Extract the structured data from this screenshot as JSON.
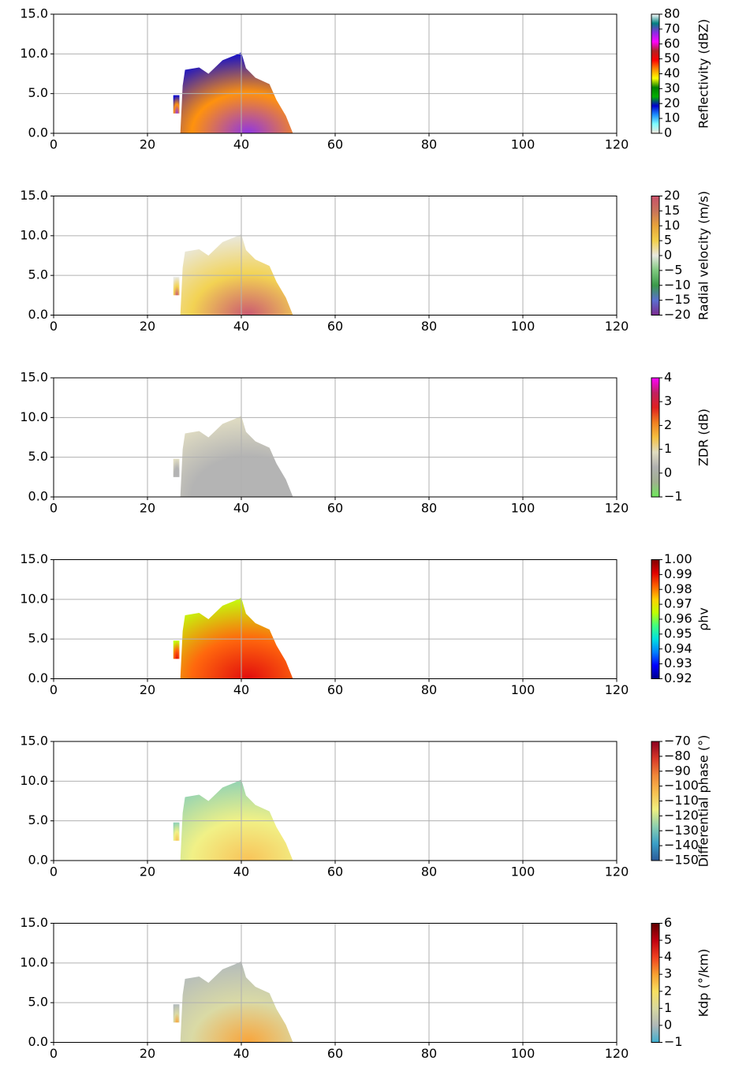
{
  "chart_data": [
    {
      "type": "heatmap",
      "xlim": [
        0,
        120
      ],
      "ylim": [
        0,
        15
      ],
      "xticks": [
        0,
        20,
        40,
        60,
        80,
        100,
        120
      ],
      "yticks": [
        {
          "value": 0,
          "label": "0.0"
        },
        {
          "value": 5,
          "label": "5.0"
        },
        {
          "value": 10,
          "label": "10.0"
        },
        {
          "value": 15,
          "label": "15.0"
        }
      ],
      "grid": true,
      "colorbar": {
        "label": "Reflectivity (dBZ)",
        "lim": [
          0,
          80
        ],
        "ticks": [
          0,
          10,
          20,
          30,
          40,
          50,
          60,
          70,
          80
        ],
        "colors": [
          "#f5e6dc",
          "#7fffff",
          "#1e90ff",
          "#0000cd",
          "#00b000",
          "#008000",
          "#ffff00",
          "#ff8c00",
          "#ff0000",
          "#b22222",
          "#ff00ff",
          "#8a2be2",
          "#008080",
          "#ffffff"
        ]
      }
    },
    {
      "type": "heatmap",
      "xlim": [
        0,
        120
      ],
      "ylim": [
        0,
        15
      ],
      "xticks": [
        0,
        20,
        40,
        60,
        80,
        100,
        120
      ],
      "yticks": [
        {
          "value": 0,
          "label": "0.0"
        },
        {
          "value": 5,
          "label": "5.0"
        },
        {
          "value": 10,
          "label": "10.0"
        },
        {
          "value": 15,
          "label": "15.0"
        }
      ],
      "grid": true,
      "colorbar": {
        "label": "Radial velocity (m/s)",
        "lim": [
          -20,
          20
        ],
        "ticks": [
          {
            "value": -20,
            "label": "−20"
          },
          {
            "value": -15,
            "label": "−15"
          },
          {
            "value": -10,
            "label": "−10"
          },
          {
            "value": -5,
            "label": "−5"
          },
          0,
          5,
          10,
          15,
          20
        ],
        "colors": [
          "#7b2a8f",
          "#5a6fd0",
          "#3a9a4a",
          "#7fc97f",
          "#e8e8e0",
          "#f2d04a",
          "#e7a33a",
          "#c9735a",
          "#c8506a"
        ]
      }
    },
    {
      "type": "heatmap",
      "xlim": [
        0,
        120
      ],
      "ylim": [
        0,
        15
      ],
      "xticks": [
        0,
        20,
        40,
        60,
        80,
        100,
        120
      ],
      "yticks": [
        {
          "value": 0,
          "label": "0.0"
        },
        {
          "value": 5,
          "label": "5.0"
        },
        {
          "value": 10,
          "label": "10.0"
        },
        {
          "value": 15,
          "label": "15.0"
        }
      ],
      "grid": true,
      "colorbar": {
        "label": "ZDR (dB)",
        "lim": [
          -1,
          4
        ],
        "ticks": [
          {
            "value": -1,
            "label": "−1"
          },
          0,
          1,
          2,
          3,
          4
        ],
        "colors": [
          "#6ee85a",
          "#a0b090",
          "#b0b0b0",
          "#e0dcc0",
          "#f5c040",
          "#f08020",
          "#e02020",
          "#c02060",
          "#ff00ff"
        ]
      }
    },
    {
      "type": "heatmap",
      "xlim": [
        0,
        120
      ],
      "ylim": [
        0,
        15
      ],
      "xticks": [
        0,
        20,
        40,
        60,
        80,
        100,
        120
      ],
      "yticks": [
        {
          "value": 0,
          "label": "0.0"
        },
        {
          "value": 5,
          "label": "5.0"
        },
        {
          "value": 10,
          "label": "10.0"
        },
        {
          "value": 15,
          "label": "15.0"
        }
      ],
      "grid": true,
      "colorbar": {
        "label": "ρhv",
        "lim": [
          0.92,
          1.0
        ],
        "ticks": [
          0.92,
          0.93,
          0.94,
          0.95,
          0.96,
          0.97,
          0.98,
          0.99,
          {
            "value": 1.0,
            "label": "1.00"
          }
        ],
        "colors": [
          "#00008b",
          "#0000ff",
          "#0080ff",
          "#00e0e0",
          "#40ff80",
          "#c0ff00",
          "#ffd000",
          "#ff6000",
          "#e00000",
          "#800000"
        ]
      }
    },
    {
      "type": "heatmap",
      "xlim": [
        0,
        120
      ],
      "ylim": [
        0,
        15
      ],
      "xticks": [
        0,
        20,
        40,
        60,
        80,
        100,
        120
      ],
      "yticks": [
        {
          "value": 0,
          "label": "0.0"
        },
        {
          "value": 5,
          "label": "5.0"
        },
        {
          "value": 10,
          "label": "10.0"
        },
        {
          "value": 15,
          "label": "15.0"
        }
      ],
      "grid": true,
      "colorbar": {
        "label": "Differential phase (°)",
        "lim": [
          -150,
          -70
        ],
        "ticks": [
          {
            "value": -150,
            "label": "−150"
          },
          {
            "value": -140,
            "label": "−140"
          },
          {
            "value": -130,
            "label": "−130"
          },
          {
            "value": -120,
            "label": "−120"
          },
          {
            "value": -110,
            "label": "−110"
          },
          {
            "value": -100,
            "label": "−100"
          },
          {
            "value": -90,
            "label": "−90"
          },
          {
            "value": -80,
            "label": "−80"
          },
          {
            "value": -70,
            "label": "−70"
          }
        ],
        "colors": [
          "#2b5a9a",
          "#3aa0c8",
          "#8cd0b0",
          "#f0f080",
          "#f8c050",
          "#f08838",
          "#d83828",
          "#8b0020"
        ]
      }
    },
    {
      "type": "heatmap",
      "xlim": [
        0,
        120
      ],
      "ylim": [
        0,
        15
      ],
      "xticks": [
        0,
        20,
        40,
        60,
        80,
        100,
        120
      ],
      "yticks": [
        {
          "value": 0,
          "label": "0.0"
        },
        {
          "value": 5,
          "label": "5.0"
        },
        {
          "value": 10,
          "label": "10.0"
        },
        {
          "value": 15,
          "label": "15.0"
        }
      ],
      "grid": true,
      "colorbar": {
        "label": "Kdp (°/km)",
        "lim": [
          -1,
          6
        ],
        "ticks": [
          {
            "value": -1,
            "label": "−1"
          },
          0,
          1,
          2,
          3,
          4,
          5,
          6
        ],
        "colors": [
          "#40b0d0",
          "#b0b8b8",
          "#d8d8a0",
          "#f8e060",
          "#f8a030",
          "#f04020",
          "#c00010",
          "#600000"
        ]
      }
    }
  ]
}
